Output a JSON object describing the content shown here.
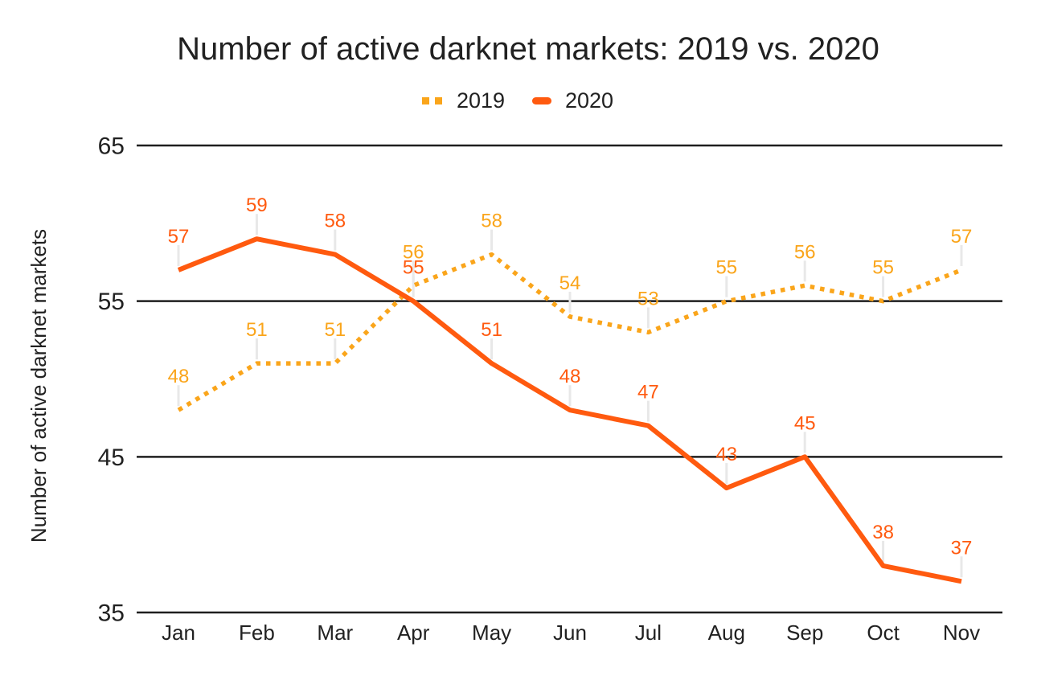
{
  "title": "Number of active darknet markets: 2019 vs. 2020",
  "chart_data": {
    "type": "line",
    "title": "Number of active darknet markets: 2019 vs. 2020",
    "ylabel": "Number of active darknet markets",
    "xlabel": "",
    "categories": [
      "Jan",
      "Feb",
      "Mar",
      "Apr",
      "May",
      "Jun",
      "Jul",
      "Aug",
      "Sep",
      "Oct",
      "Nov"
    ],
    "series": [
      {
        "name": "2019",
        "style": "dotted",
        "color": "#FAA51B",
        "values": [
          48,
          51,
          51,
          56,
          58,
          54,
          53,
          55,
          56,
          55,
          57
        ]
      },
      {
        "name": "2020",
        "style": "solid",
        "color": "#FF5A0F",
        "values": [
          57,
          59,
          58,
          55,
          51,
          48,
          47,
          43,
          45,
          38,
          37
        ]
      }
    ],
    "y_ticks": [
      65,
      55,
      45,
      35
    ],
    "ylim": [
      35,
      65
    ],
    "grid": true,
    "data_labels": true,
    "legend_position": "top-center",
    "colors": {
      "text": "#212121",
      "gridline": "#1f1f1f",
      "leader_line": "#e8e8e8",
      "background": "#ffffff"
    }
  }
}
